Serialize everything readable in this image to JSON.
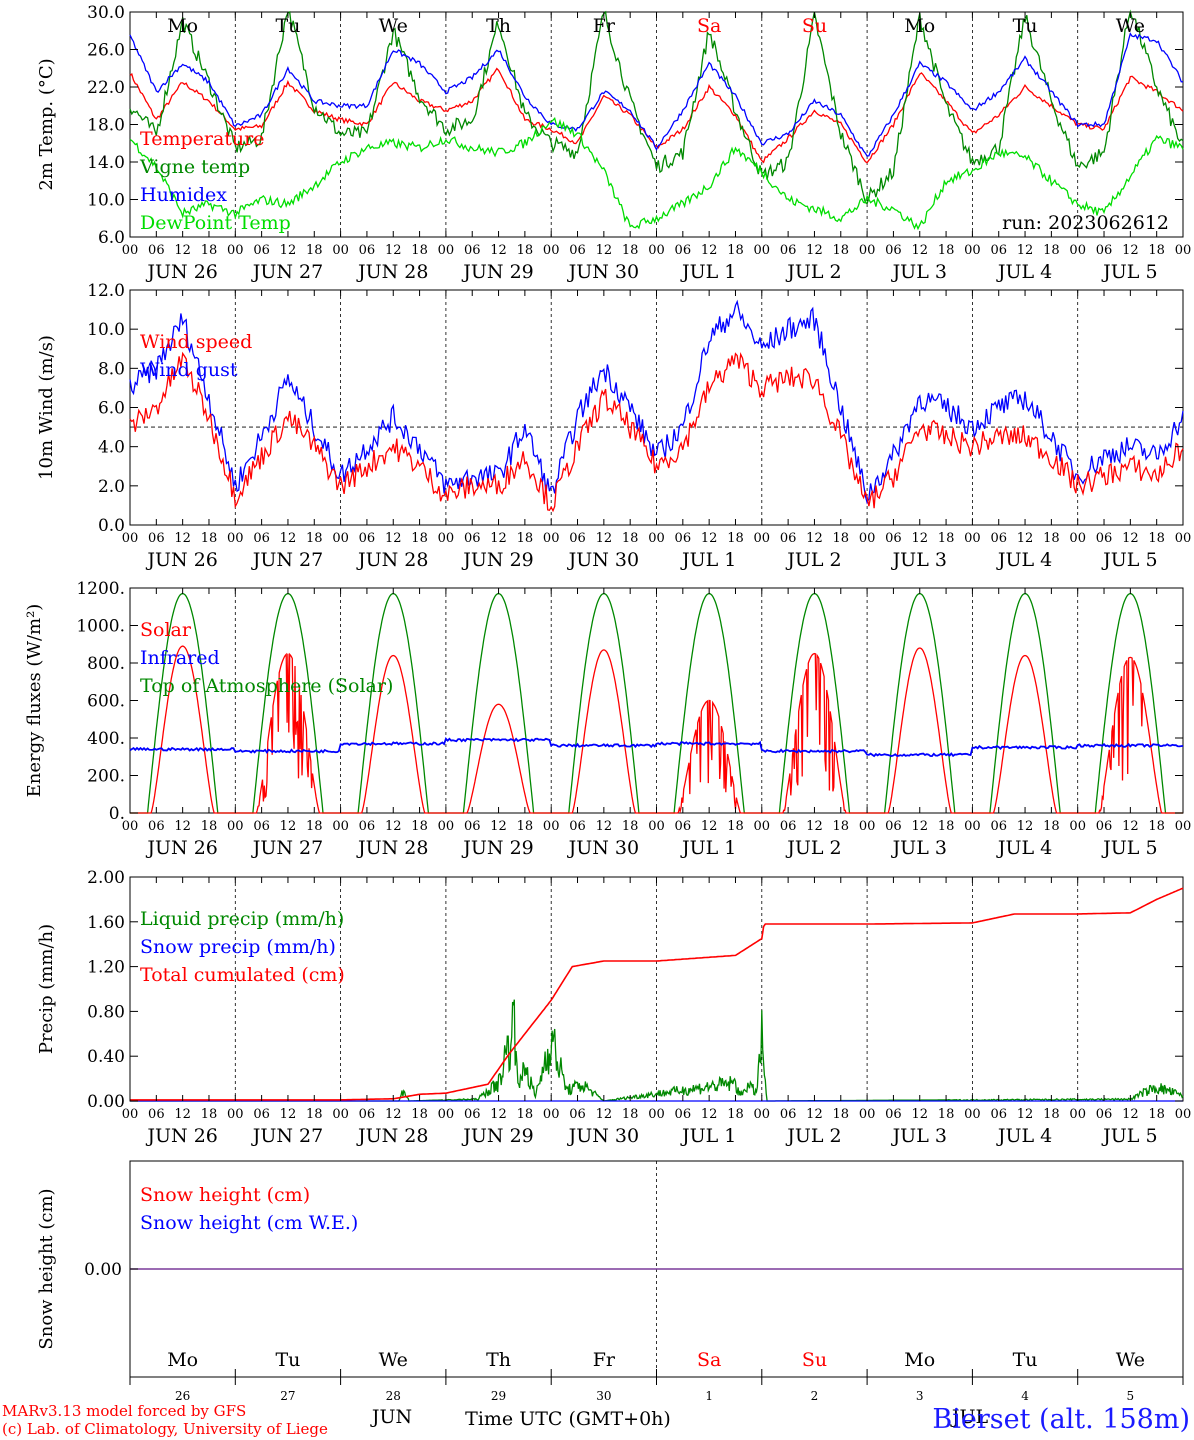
{
  "colors": {
    "temperature": "#ff0000",
    "vigne": "#008800",
    "humidex": "#0000ff",
    "dewpoint": "#00dd00",
    "solar": "#ff0000",
    "infrared": "#0000ff",
    "toa": "#008800",
    "liquid": "#008800",
    "snow": "#0000ff",
    "total": "#ff0000",
    "weekend": "#ff0000",
    "station": "#1a1aff"
  },
  "day_abbrevs": [
    "Mo",
    "Tu",
    "We",
    "Th",
    "Fr",
    "Sa",
    "Su",
    "Mo",
    "Tu",
    "We"
  ],
  "weekend_flags": [
    false,
    false,
    false,
    false,
    false,
    true,
    true,
    false,
    false,
    false
  ],
  "hour_ticks": [
    "00",
    "06",
    "12",
    "18"
  ],
  "date_labels": [
    "JUN 26",
    "JUN 27",
    "JUN 28",
    "JUN 29",
    "JUN 30",
    "JUL  1",
    "JUL  2",
    "JUL  3",
    "JUL  4",
    "JUL  5"
  ],
  "day_numbers": [
    "26",
    "27",
    "28",
    "29",
    "30",
    "1",
    "2",
    "3",
    "4",
    "5"
  ],
  "bottom": {
    "month_jun": "JUN",
    "month_jul": "JUL",
    "time_label": "Time UTC (GMT+0h)",
    "credit_line1": "MARv3.13 model forced by GFS",
    "credit_line2": "(c) Lab. of Climatology, University of Liege",
    "station": "Bierset (alt. 158m)"
  },
  "chart_data": [
    {
      "type": "line",
      "ylabel": "2m Temp. (°C)",
      "ylim": [
        6.0,
        30.0
      ],
      "yticks": [
        "30.0",
        "26.0",
        "22.0",
        "18.0",
        "14.0",
        "10.0",
        "6.0"
      ],
      "annotation": "run: 2023062612",
      "legend": [
        "Temperature",
        "Vigne temp",
        "Humidex",
        "DewPoint Temp"
      ],
      "x_days": [
        0,
        0.25,
        0.5,
        0.75,
        1,
        1.25,
        1.5,
        1.75,
        2,
        2.25,
        2.5,
        2.75,
        3,
        3.25,
        3.5,
        3.75,
        4,
        4.25,
        4.5,
        4.75,
        5,
        5.25,
        5.5,
        5.75,
        6,
        6.25,
        6.5,
        6.75,
        7,
        7.25,
        7.5,
        7.75,
        8,
        8.25,
        8.5,
        8.75,
        9,
        9.25,
        9.5,
        9.75,
        10
      ],
      "series": [
        {
          "name": "Temperature",
          "values": [
            23.5,
            18.5,
            22.5,
            20.5,
            17.5,
            17.8,
            22.5,
            19.5,
            18.5,
            18.0,
            22.5,
            20.5,
            19.5,
            20.5,
            24.0,
            18.5,
            17.5,
            16.0,
            21.0,
            19.0,
            15.5,
            17.5,
            22.0,
            19.0,
            14.0,
            16.5,
            19.5,
            18.0,
            14.0,
            18.0,
            23.5,
            20.5,
            17.0,
            19.0,
            22.0,
            20.0,
            18.0,
            17.5,
            23.0,
            21.5,
            19.5
          ]
        },
        {
          "name": "Vigne temp",
          "values": [
            20.0,
            17.0,
            29.0,
            22.5,
            15.5,
            16.5,
            30.5,
            20.0,
            17.0,
            17.0,
            28.0,
            21.0,
            17.5,
            18.5,
            29.0,
            19.0,
            16.0,
            15.0,
            30.0,
            20.5,
            13.5,
            15.0,
            28.0,
            19.5,
            12.5,
            14.0,
            29.5,
            17.0,
            10.0,
            13.0,
            29.5,
            20.0,
            14.0,
            15.5,
            29.5,
            20.5,
            13.5,
            15.0,
            30.5,
            22.0,
            15.5
          ]
        },
        {
          "name": "Humidex",
          "values": [
            27.5,
            21.5,
            24.5,
            22.5,
            17.8,
            19.0,
            24.0,
            20.5,
            20.0,
            20.0,
            26.0,
            24.5,
            21.5,
            23.0,
            26.0,
            21.0,
            18.0,
            17.5,
            21.5,
            19.5,
            15.5,
            19.5,
            24.5,
            21.0,
            16.0,
            17.0,
            20.5,
            19.0,
            14.5,
            19.0,
            24.5,
            22.5,
            19.5,
            21.5,
            25.0,
            21.5,
            18.0,
            18.0,
            27.5,
            27.0,
            22.5
          ]
        },
        {
          "name": "DewPoint Temp",
          "values": [
            16.5,
            13.5,
            8.5,
            9.5,
            8.5,
            10.0,
            9.5,
            11.5,
            14.0,
            15.5,
            16.0,
            15.5,
            16.5,
            15.5,
            15.0,
            16.0,
            18.5,
            17.0,
            13.0,
            7.0,
            8.0,
            9.5,
            11.5,
            15.5,
            13.0,
            10.0,
            9.0,
            8.0,
            10.0,
            9.0,
            7.0,
            12.0,
            13.0,
            15.0,
            14.5,
            12.0,
            9.5,
            8.5,
            12.5,
            16.5,
            15.5
          ]
        }
      ]
    },
    {
      "type": "line",
      "ylabel": "10m Wind (m/s)",
      "ylim": [
        0.0,
        12.0
      ],
      "yticks": [
        "12.0",
        "10.0",
        "8.0",
        "6.0",
        "4.0",
        "2.0",
        "0.0"
      ],
      "reference_line": 5.0,
      "legend": [
        "Wind speed",
        "Wind gust"
      ],
      "x_days": [
        0,
        0.25,
        0.5,
        0.75,
        1,
        1.25,
        1.5,
        1.75,
        2,
        2.25,
        2.5,
        2.75,
        3,
        3.25,
        3.5,
        3.75,
        4,
        4.25,
        4.5,
        4.75,
        5,
        5.25,
        5.5,
        5.75,
        6,
        6.25,
        6.5,
        6.75,
        7,
        7.25,
        7.5,
        7.75,
        8,
        8.25,
        8.5,
        8.75,
        9,
        9.25,
        9.5,
        9.75,
        10
      ],
      "series": [
        {
          "name": "Wind speed",
          "values": [
            5.0,
            6.0,
            8.5,
            5.5,
            1.5,
            3.5,
            5.5,
            4.0,
            2.0,
            3.0,
            4.0,
            3.0,
            1.5,
            2.0,
            2.0,
            3.5,
            1.0,
            4.0,
            6.5,
            5.0,
            3.0,
            4.0,
            7.0,
            8.5,
            7.0,
            7.5,
            7.5,
            4.5,
            1.0,
            2.5,
            5.0,
            4.5,
            4.0,
            4.5,
            4.5,
            3.5,
            2.0,
            2.5,
            3.0,
            2.5,
            4.0
          ]
        },
        {
          "name": "Wind gust",
          "values": [
            7.0,
            8.0,
            10.5,
            6.5,
            2.0,
            4.5,
            7.5,
            5.0,
            2.5,
            4.0,
            5.5,
            4.0,
            2.0,
            2.5,
            2.5,
            5.0,
            1.5,
            5.5,
            8.0,
            6.0,
            3.5,
            5.0,
            9.5,
            11.0,
            9.0,
            10.0,
            10.5,
            6.0,
            1.5,
            3.5,
            6.5,
            6.0,
            5.0,
            6.0,
            6.5,
            4.5,
            2.5,
            3.5,
            4.0,
            3.5,
            5.5
          ]
        }
      ]
    },
    {
      "type": "line",
      "ylabel": "Energy fluxes (W/m²)",
      "ylim": [
        0,
        1200
      ],
      "yticks": [
        "1200.",
        "1000.",
        "800.",
        "600.",
        "400.",
        "200.",
        "0."
      ],
      "legend": [
        "Solar",
        "Infrared",
        "Top of Atmosphere (Solar)"
      ],
      "toa_peak": 1170,
      "daylight_hours": [
        4,
        20
      ],
      "solar_daily_peak": [
        890,
        850,
        840,
        580,
        870,
        600,
        850,
        880,
        840,
        830
      ],
      "infrared_daily": [
        340,
        330,
        370,
        390,
        360,
        370,
        330,
        310,
        350,
        360
      ]
    },
    {
      "type": "line",
      "ylabel": "Precip (mm/h)",
      "ylim": [
        0.0,
        2.0
      ],
      "yticks": [
        "2.00",
        "1.60",
        "1.20",
        "0.80",
        "0.40",
        "0.00"
      ],
      "legend": [
        "Liquid precip (mm/h)",
        "Snow precip (mm/h)",
        "Total cumulated (cm)"
      ],
      "series": [
        {
          "name": "Total cumulated (cm)",
          "x_days": [
            0,
            2,
            2.5,
            2.75,
            3,
            3.4,
            3.6,
            3.75,
            4,
            4.2,
            4.5,
            5,
            5.75,
            6,
            6.02,
            7,
            8,
            8.4,
            9,
            9.5,
            9.75,
            10
          ],
          "values": [
            0.01,
            0.01,
            0.02,
            0.06,
            0.07,
            0.15,
            0.42,
            0.6,
            0.9,
            1.2,
            1.25,
            1.25,
            1.3,
            1.45,
            1.58,
            1.58,
            1.59,
            1.67,
            1.67,
            1.68,
            1.8,
            1.9
          ]
        },
        {
          "name": "Liquid precip (mm/h)",
          "x_days": [
            0,
            2.55,
            2.6,
            2.65,
            3.3,
            3.5,
            3.65,
            3.7,
            3.75,
            3.85,
            4.0,
            4.1,
            4.15,
            4.3,
            4.5,
            5.75,
            5.8,
            5.85,
            5.95,
            6.0,
            6.05,
            9.5,
            9.6,
            9.75,
            9.9,
            10
          ],
          "values": [
            0.0,
            0.0,
            0.12,
            0.0,
            0.02,
            0.2,
            0.88,
            0.15,
            0.4,
            0.05,
            0.7,
            0.3,
            0.12,
            0.18,
            0.0,
            0.2,
            0.05,
            0.18,
            0.1,
            0.68,
            0.0,
            0.02,
            0.08,
            0.15,
            0.1,
            0.05
          ]
        },
        {
          "name": "Snow precip (mm/h)",
          "x_days": [
            0,
            10
          ],
          "values": [
            0.0,
            0.0
          ]
        }
      ]
    },
    {
      "type": "line",
      "ylabel": "Snow height (cm)",
      "ylim": [
        -1,
        1
      ],
      "yticks": [
        "0.00"
      ],
      "legend": [
        "Snow height (cm)",
        "Snow height (cm W.E.)"
      ],
      "series": [
        {
          "name": "Snow height (cm)",
          "x_days": [
            0,
            10
          ],
          "values": [
            0.0,
            0.0
          ]
        },
        {
          "name": "Snow height (cm W.E.)",
          "x_days": [
            0,
            10
          ],
          "values": [
            0.0,
            0.0
          ]
        }
      ]
    }
  ]
}
